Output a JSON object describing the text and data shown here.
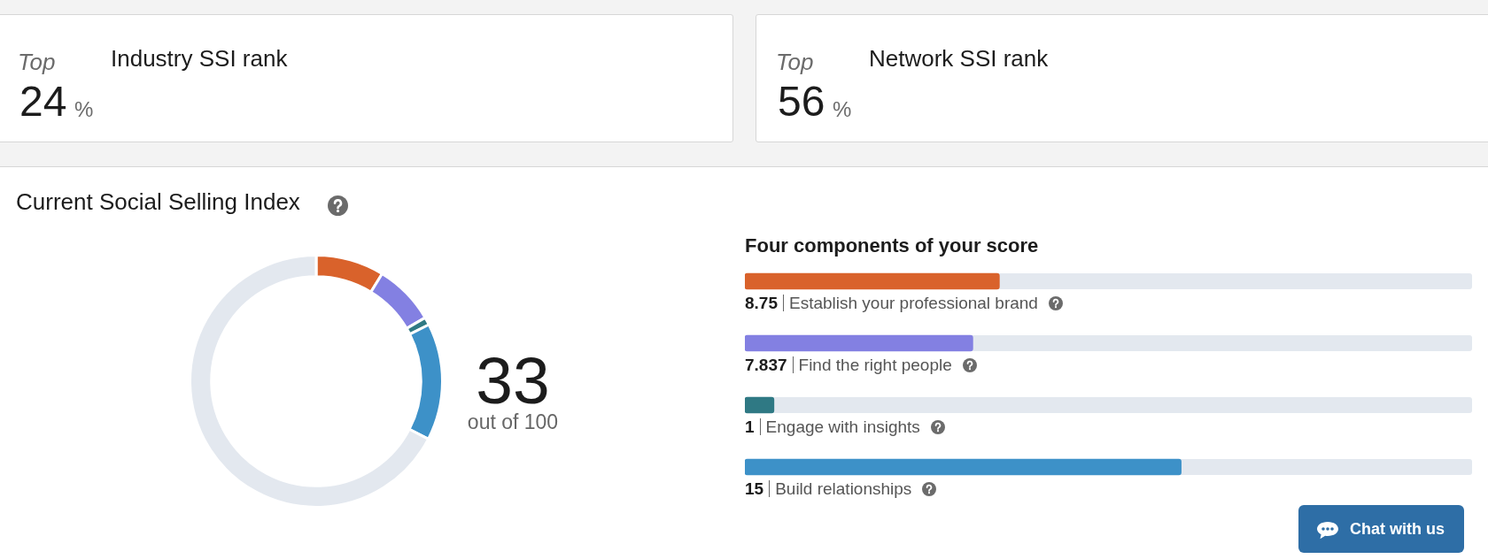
{
  "chart_data": [
    {
      "type": "other",
      "title": "Industry SSI rank",
      "annotations": [
        "Top",
        "24",
        "%"
      ]
    },
    {
      "type": "other",
      "title": "Network SSI rank",
      "annotations": [
        "Top",
        "56",
        "%"
      ]
    },
    {
      "type": "donut",
      "title": "Current Social Selling Index",
      "categories": [
        null,
        null,
        null,
        null,
        null
      ],
      "values": [
        8.75,
        7.837,
        1,
        15,
        67.413
      ],
      "colors": [
        "#d9622b",
        "#8380e2",
        "#2f7984",
        "#3d91c8",
        "#e3e8ef"
      ],
      "annotations": [
        "33",
        "out of 100"
      ]
    },
    {
      "type": "bar",
      "orientation": "horizontal",
      "title": "Four components of your score",
      "categories": [
        "Establish your professional brand",
        "Find the right people",
        "Engage with insights",
        "Build relationships"
      ],
      "values": [
        8.75,
        7.837,
        1,
        15
      ],
      "colors": [
        "#d9622b",
        "#8380e2",
        "#2f7984",
        "#3d91c8"
      ],
      "xlim": [
        0,
        25
      ],
      "data_labels": true,
      "annotations": [
        "Chat with us"
      ]
    }
  ]
}
